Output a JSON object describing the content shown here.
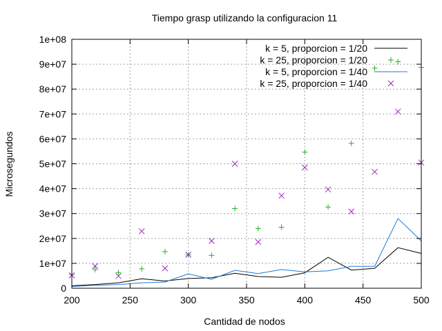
{
  "chart_data": {
    "type": "line",
    "title": "Tiempo grasp utilizando la configuracion 11",
    "xlabel": "Cantidad de nodos",
    "ylabel": "Microsegundos",
    "xlim": [
      200,
      500
    ],
    "ylim": [
      0,
      100000000
    ],
    "x_ticks": [
      200,
      250,
      300,
      350,
      400,
      450,
      500
    ],
    "x_tick_labels": [
      "200",
      "250",
      "300",
      "350",
      "400",
      "450",
      "500"
    ],
    "y_ticks": [
      0,
      10000000,
      20000000,
      30000000,
      40000000,
      50000000,
      60000000,
      70000000,
      80000000,
      90000000,
      100000000
    ],
    "y_tick_labels": [
      "0",
      "1e+07",
      "2e+07",
      "3e+07",
      "4e+07",
      "5e+07",
      "6e+07",
      "7e+07",
      "8e+07",
      "9e+07",
      "1e+08"
    ],
    "grid": true,
    "legend_position": "top-right",
    "series": [
      {
        "name": "k = 5, proporcion = 1/20",
        "style": "line",
        "color": "#000000",
        "x": [
          200,
          220,
          240,
          260,
          280,
          300,
          320,
          340,
          360,
          380,
          400,
          420,
          440,
          460,
          480,
          500
        ],
        "y": [
          1000000,
          1500000,
          2200000,
          3800000,
          2900000,
          3900000,
          4200000,
          6000000,
          4700000,
          4400000,
          6200000,
          12400000,
          7300000,
          8000000,
          16300000,
          14000000
        ]
      },
      {
        "name": "k = 25, proporcion = 1/20",
        "style": "plus",
        "color": "#22b022",
        "x": [
          200,
          220,
          240,
          260,
          280,
          300,
          320,
          340,
          360,
          380,
          400,
          420,
          440,
          460,
          480,
          500
        ],
        "y": [
          5500000,
          7500000,
          6300000,
          7800000,
          14700000,
          13400000,
          13200000,
          32000000,
          24000000,
          24500000,
          54700000,
          32600000,
          58200000,
          88400000,
          91000000,
          88700000
        ]
      },
      {
        "name": "k = 5, proporcion = 1/40",
        "style": "line",
        "color": "#1f77d4",
        "x": [
          200,
          220,
          240,
          260,
          280,
          300,
          320,
          340,
          360,
          380,
          400,
          420,
          440,
          460,
          480,
          500
        ],
        "y": [
          700000,
          1200000,
          1500000,
          2200000,
          2500000,
          5800000,
          3600000,
          7200000,
          5900000,
          7500000,
          6600000,
          7000000,
          8800000,
          8800000,
          28000000,
          19000000
        ]
      },
      {
        "name": "k = 25, proporcion = 1/40",
        "style": "cross",
        "color": "#a020c0",
        "x": [
          200,
          220,
          240,
          260,
          280,
          300,
          320,
          340,
          360,
          380,
          400,
          420,
          440,
          460,
          480,
          500
        ],
        "y": [
          5200000,
          8900000,
          4900000,
          22900000,
          8000000,
          13500000,
          19000000,
          50000000,
          18600000,
          37200000,
          48500000,
          39700000,
          30800000,
          46800000,
          71000000,
          50500000
        ]
      }
    ]
  }
}
